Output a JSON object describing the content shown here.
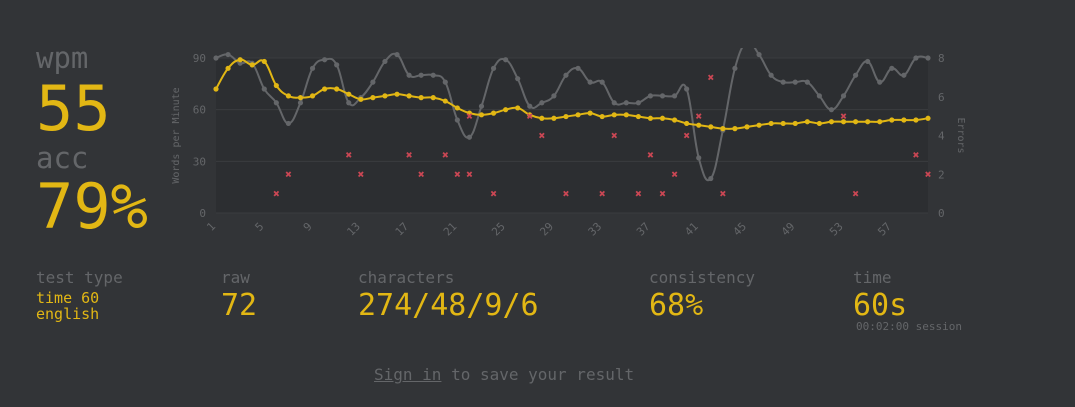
{
  "summary": {
    "wpm_label": "wpm",
    "wpm_value": "55",
    "acc_label": "acc",
    "acc_value": "79%"
  },
  "details": {
    "test_type_label": "test type",
    "test_type_line1": "time 60",
    "test_type_line2": "english",
    "raw_label": "raw",
    "raw_value": "72",
    "characters_label": "characters",
    "characters_value": "274/48/9/6",
    "consistency_label": "consistency",
    "consistency_value": "68%",
    "time_label": "time",
    "time_value": "60s",
    "session_text": "00:02:00 session"
  },
  "footer": {
    "signin_link": "Sign in",
    "signin_rest": "to save your result"
  },
  "colors": {
    "background": "#323437",
    "accent": "#e2b714",
    "sub": "#646669",
    "error": "#ca4754"
  },
  "chart_data": {
    "type": "line",
    "ylabel": "Words per Minute",
    "y2label": "Errors",
    "ylim": [
      0,
      90
    ],
    "y2lim": [
      0,
      8
    ],
    "yticks": [
      0,
      30,
      60,
      90
    ],
    "y2ticks": [
      0,
      2,
      4,
      6,
      8
    ],
    "x": [
      1,
      2,
      3,
      4,
      5,
      6,
      7,
      8,
      9,
      10,
      11,
      12,
      13,
      14,
      15,
      16,
      17,
      18,
      19,
      20,
      21,
      22,
      23,
      24,
      25,
      26,
      27,
      28,
      29,
      30,
      31,
      32,
      33,
      34,
      35,
      36,
      37,
      38,
      39,
      40,
      41,
      42,
      43,
      44,
      45,
      46,
      47,
      48,
      49,
      50,
      51,
      52,
      53,
      54,
      55,
      56,
      57,
      58,
      59,
      60
    ],
    "xticks": [
      1,
      5,
      9,
      13,
      17,
      21,
      25,
      29,
      33,
      37,
      41,
      45,
      49,
      53,
      57
    ],
    "series": [
      {
        "name": "raw",
        "color": "#646669",
        "values": [
          90,
          92,
          87,
          87,
          72,
          64,
          52,
          64,
          84,
          89,
          86,
          64,
          67,
          76,
          88,
          92,
          80,
          80,
          80,
          76,
          54,
          44,
          62,
          84,
          89,
          78,
          62,
          64,
          68,
          80,
          84,
          76,
          76,
          64,
          64,
          64,
          68,
          68,
          68,
          72,
          32,
          20,
          48,
          84,
          99,
          92,
          80,
          76,
          76,
          76,
          68,
          60,
          68,
          80,
          88,
          76,
          84,
          80,
          90,
          90
        ]
      },
      {
        "name": "wpm",
        "color": "#e2b714",
        "values": [
          72,
          84,
          89,
          86,
          88,
          74,
          68,
          67,
          68,
          72,
          72,
          69,
          66,
          67,
          68,
          69,
          68,
          67,
          67,
          65,
          61,
          58,
          57,
          58,
          60,
          61,
          57,
          55,
          55,
          56,
          57,
          58,
          56,
          57,
          57,
          56,
          55,
          55,
          54,
          52,
          51,
          50,
          49,
          49,
          50,
          51,
          52,
          52,
          52,
          53,
          52,
          53,
          53,
          53,
          53,
          53,
          54,
          54,
          54,
          55
        ]
      },
      {
        "name": "errors",
        "color": "#ca4754",
        "type": "scatter",
        "points": [
          [
            6,
            1
          ],
          [
            7,
            2
          ],
          [
            12,
            3
          ],
          [
            13,
            2
          ],
          [
            17,
            3
          ],
          [
            18,
            2
          ],
          [
            20,
            3
          ],
          [
            21,
            2
          ],
          [
            22,
            2
          ],
          [
            22,
            5
          ],
          [
            24,
            1
          ],
          [
            27,
            5
          ],
          [
            28,
            4
          ],
          [
            30,
            1
          ],
          [
            33,
            1
          ],
          [
            34,
            4
          ],
          [
            36,
            1
          ],
          [
            37,
            3
          ],
          [
            38,
            1
          ],
          [
            39,
            2
          ],
          [
            40,
            4
          ],
          [
            41,
            5
          ],
          [
            42,
            7
          ],
          [
            43,
            1
          ],
          [
            53,
            5
          ],
          [
            54,
            1
          ],
          [
            59,
            3
          ],
          [
            60,
            2
          ]
        ]
      }
    ]
  }
}
